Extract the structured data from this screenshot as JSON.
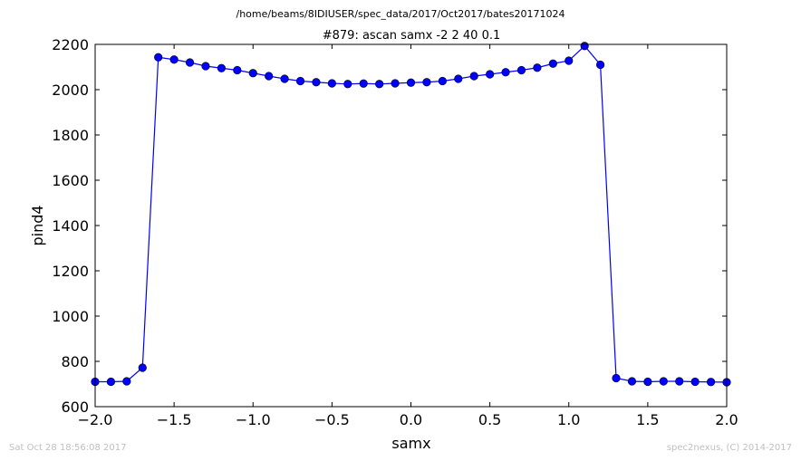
{
  "suptitle": "/home/beams/8IDIUSER/spec_data/2017/Oct2017/bates20171024",
  "footer": {
    "left": "Sat Oct 28 18:56:08 2017",
    "right": "spec2nexus, (C) 2014-2017"
  },
  "chart_data": {
    "type": "line",
    "title": "#879: ascan  samx -2 2  40 0.1",
    "xlabel": "samx",
    "ylabel": "pind4",
    "xlim": [
      -2.0,
      2.0
    ],
    "ylim": [
      600,
      2200
    ],
    "xticks": [
      "−2.0",
      "−1.5",
      "−1.0",
      "−0.5",
      "0.0",
      "0.5",
      "1.0",
      "1.5",
      "2.0"
    ],
    "yticks": [
      "600",
      "800",
      "1000",
      "1200",
      "1400",
      "1600",
      "1800",
      "2000",
      "2200"
    ],
    "grid": false,
    "marker": "circle",
    "color": "#0000ff",
    "series": [
      {
        "x": [
          -2.0,
          -1.9,
          -1.8,
          -1.7,
          -1.6,
          -1.5,
          -1.4,
          -1.3,
          -1.2,
          -1.1,
          -1.0,
          -0.9,
          -0.8,
          -0.7,
          -0.6,
          -0.5,
          -0.4,
          -0.3,
          -0.2,
          -0.1,
          0.0,
          0.1,
          0.2,
          0.3,
          0.4,
          0.5,
          0.6,
          0.7,
          0.8,
          0.9,
          1.0,
          1.1,
          1.2,
          1.3,
          1.4,
          1.5,
          1.6,
          1.7,
          1.8,
          1.9,
          2.0
        ],
        "y": [
          710,
          710,
          712,
          772,
          2143,
          2133,
          2120,
          2104,
          2095,
          2086,
          2073,
          2060,
          2048,
          2038,
          2033,
          2028,
          2025,
          2027,
          2025,
          2028,
          2031,
          2033,
          2038,
          2048,
          2060,
          2068,
          2077,
          2086,
          2097,
          2115,
          2128,
          2193,
          2110,
          726,
          712,
          710,
          712,
          712,
          710,
          709,
          708
        ]
      }
    ]
  }
}
